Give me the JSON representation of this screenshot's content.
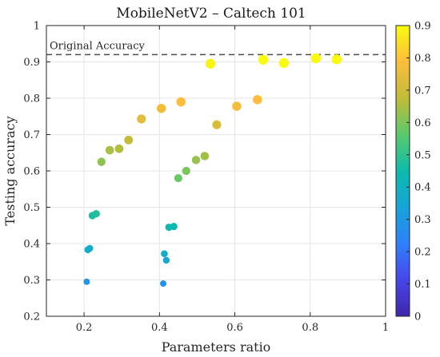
{
  "chart_data": {
    "type": "scatter",
    "title": "MobileNetV2 – Caltech 101",
    "xlabel": "Parameters ratio",
    "ylabel": "Testing accuracy",
    "xlim": [
      0.1,
      1.0
    ],
    "ylim": [
      0.2,
      1.0
    ],
    "x_ticks": [
      "0.2",
      "0.4",
      "0.6",
      "0.8",
      "1"
    ],
    "x_tick_values": [
      0.2,
      0.4,
      0.6,
      0.8,
      1.0
    ],
    "y_ticks": [
      "0.2",
      "0.3",
      "0.4",
      "0.5",
      "0.6",
      "0.7",
      "0.8",
      "0.9",
      "1"
    ],
    "y_tick_values": [
      0.2,
      0.3,
      0.4,
      0.5,
      0.6,
      0.7,
      0.8,
      0.9,
      1.0
    ],
    "grid": true,
    "reference_line": {
      "label": "Original Accuracy",
      "y": 0.92,
      "style": "dashed"
    },
    "colorbar": {
      "range": [
        0,
        0.9
      ],
      "ticks": [
        "0",
        "0.1",
        "0.2",
        "0.3",
        "0.4",
        "0.5",
        "0.6",
        "0.7",
        "0.8",
        "0.9"
      ],
      "tick_values": [
        0,
        0.1,
        0.2,
        0.3,
        0.4,
        0.5,
        0.6,
        0.7,
        0.8,
        0.9
      ],
      "colormap": "parula",
      "placement": "right"
    },
    "points": [
      {
        "x": 0.207,
        "y": 0.295,
        "c": 0.29
      },
      {
        "x": 0.21,
        "y": 0.383,
        "c": 0.38
      },
      {
        "x": 0.215,
        "y": 0.387,
        "c": 0.38
      },
      {
        "x": 0.222,
        "y": 0.477,
        "c": 0.47
      },
      {
        "x": 0.232,
        "y": 0.482,
        "c": 0.48
      },
      {
        "x": 0.246,
        "y": 0.625,
        "c": 0.62
      },
      {
        "x": 0.268,
        "y": 0.657,
        "c": 0.65
      },
      {
        "x": 0.293,
        "y": 0.661,
        "c": 0.66
      },
      {
        "x": 0.318,
        "y": 0.685,
        "c": 0.68
      },
      {
        "x": 0.352,
        "y": 0.743,
        "c": 0.74
      },
      {
        "x": 0.41,
        "y": 0.29,
        "c": 0.29
      },
      {
        "x": 0.413,
        "y": 0.372,
        "c": 0.37
      },
      {
        "x": 0.418,
        "y": 0.354,
        "c": 0.35
      },
      {
        "x": 0.405,
        "y": 0.772,
        "c": 0.77
      },
      {
        "x": 0.425,
        "y": 0.445,
        "c": 0.44
      },
      {
        "x": 0.438,
        "y": 0.447,
        "c": 0.44
      },
      {
        "x": 0.45,
        "y": 0.58,
        "c": 0.58
      },
      {
        "x": 0.457,
        "y": 0.79,
        "c": 0.79
      },
      {
        "x": 0.471,
        "y": 0.6,
        "c": 0.6
      },
      {
        "x": 0.497,
        "y": 0.63,
        "c": 0.63
      },
      {
        "x": 0.52,
        "y": 0.641,
        "c": 0.64
      },
      {
        "x": 0.535,
        "y": 0.895,
        "c": 0.89
      },
      {
        "x": 0.552,
        "y": 0.727,
        "c": 0.72
      },
      {
        "x": 0.605,
        "y": 0.778,
        "c": 0.77
      },
      {
        "x": 0.66,
        "y": 0.796,
        "c": 0.79
      },
      {
        "x": 0.675,
        "y": 0.906,
        "c": 0.9
      },
      {
        "x": 0.73,
        "y": 0.897,
        "c": 0.9
      },
      {
        "x": 0.815,
        "y": 0.91,
        "c": 0.91
      },
      {
        "x": 0.87,
        "y": 0.907,
        "c": 0.91
      }
    ]
  }
}
